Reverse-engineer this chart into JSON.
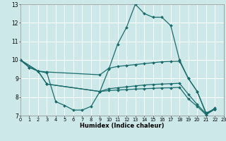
{
  "xlabel": "Humidex (Indice chaleur)",
  "xlim": [
    0,
    23
  ],
  "ylim": [
    7,
    13
  ],
  "yticks": [
    7,
    8,
    9,
    10,
    11,
    12,
    13
  ],
  "xticks": [
    0,
    1,
    2,
    3,
    4,
    5,
    6,
    7,
    8,
    9,
    10,
    11,
    12,
    13,
    14,
    15,
    16,
    17,
    18,
    19,
    20,
    21,
    22,
    23
  ],
  "bg_color": "#cce8e8",
  "grid_color": "#ffffff",
  "line_color": "#1a6b6b",
  "lines": [
    {
      "x": [
        0,
        1,
        2,
        3,
        4,
        5,
        6,
        7,
        8,
        9,
        10,
        11,
        12,
        13,
        14,
        15,
        16,
        17,
        18,
        19,
        20,
        21,
        22
      ],
      "y": [
        10.0,
        9.6,
        9.4,
        9.3,
        7.75,
        7.55,
        7.3,
        7.3,
        7.5,
        8.3,
        9.5,
        10.85,
        11.75,
        13.0,
        12.5,
        12.3,
        12.3,
        11.85,
        10.0,
        9.0,
        8.3,
        7.1,
        7.35
      ]
    },
    {
      "x": [
        0,
        1,
        2,
        3,
        9,
        10,
        11,
        12,
        13,
        14,
        15,
        16,
        17,
        18,
        19,
        20,
        21,
        22
      ],
      "y": [
        10.0,
        9.6,
        9.4,
        9.35,
        9.2,
        9.55,
        9.65,
        9.7,
        9.75,
        9.8,
        9.85,
        9.9,
        9.92,
        9.93,
        9.0,
        8.3,
        7.15,
        7.35
      ]
    },
    {
      "x": [
        0,
        2,
        3,
        9,
        10,
        11,
        12,
        13,
        14,
        15,
        16,
        17,
        18,
        19,
        20,
        21,
        22
      ],
      "y": [
        10.0,
        9.4,
        8.7,
        8.3,
        8.45,
        8.5,
        8.55,
        8.6,
        8.65,
        8.68,
        8.7,
        8.72,
        8.74,
        8.15,
        7.6,
        7.1,
        7.4
      ]
    },
    {
      "x": [
        0,
        2,
        3,
        9,
        10,
        11,
        12,
        13,
        14,
        15,
        16,
        17,
        18,
        19,
        20,
        21,
        22
      ],
      "y": [
        10.0,
        9.4,
        8.7,
        8.3,
        8.35,
        8.38,
        8.4,
        8.43,
        8.45,
        8.47,
        8.49,
        8.5,
        8.52,
        7.9,
        7.5,
        7.05,
        7.35
      ]
    }
  ]
}
